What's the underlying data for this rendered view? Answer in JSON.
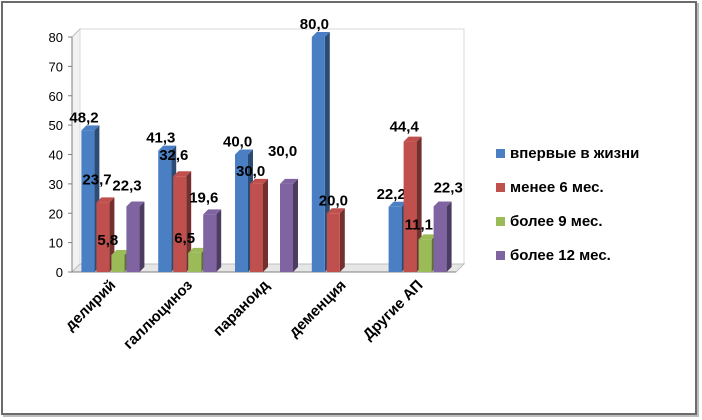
{
  "chart_data": {
    "type": "bar",
    "categories": [
      "делирий",
      "галлюциноз",
      "параноид",
      "деменция",
      "Другие АП"
    ],
    "series": [
      {
        "name": "впервые в жизни",
        "color": "#4a7fc4",
        "values": [
          48.2,
          41.3,
          40.0,
          80.0,
          22.2
        ],
        "labels": [
          "48,2",
          "41,3",
          "40,0",
          "80,0",
          "22,2"
        ]
      },
      {
        "name": "менее 6 мес.",
        "color": "#c0504d",
        "values": [
          23.7,
          32.6,
          30.0,
          20.0,
          44.4
        ],
        "labels": [
          "23,7",
          "32,6",
          "30,0",
          "20,0",
          "44,4"
        ]
      },
      {
        "name": "более 9 мес.",
        "color": "#9bbb59",
        "values": [
          5.8,
          6.5,
          null,
          null,
          11.1
        ],
        "labels": [
          "5,8",
          "6,5",
          null,
          null,
          "11,1"
        ]
      },
      {
        "name": "более 12 мес.",
        "color": "#8064a2",
        "values": [
          22.3,
          19.6,
          30.0,
          null,
          22.3
        ],
        "labels": [
          "22,3",
          "19,6",
          "30,0",
          null,
          "22,3"
        ]
      }
    ],
    "yticks": [
      "0",
      "10",
      "20",
      "30",
      "40",
      "50",
      "60",
      "70",
      "80"
    ],
    "ylim": [
      0,
      80
    ],
    "grid": false,
    "legend_position": "right",
    "title": "",
    "xlabel": "",
    "ylabel": ""
  }
}
